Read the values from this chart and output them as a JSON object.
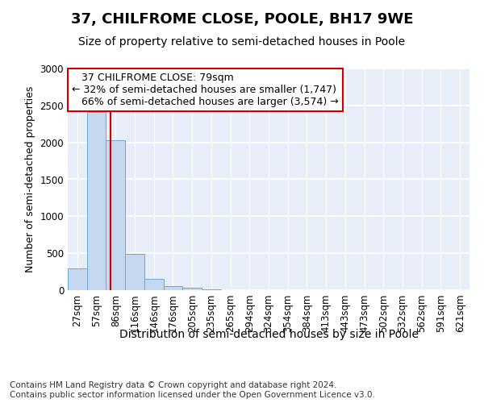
{
  "title": "37, CHILFROME CLOSE, POOLE, BH17 9WE",
  "subtitle": "Size of property relative to semi-detached houses in Poole",
  "xlabel": "Distribution of semi-detached houses by size in Poole",
  "ylabel": "Number of semi-detached properties",
  "categories": [
    "27sqm",
    "57sqm",
    "86sqm",
    "116sqm",
    "146sqm",
    "176sqm",
    "205sqm",
    "235sqm",
    "265sqm",
    "294sqm",
    "324sqm",
    "354sqm",
    "384sqm",
    "413sqm",
    "443sqm",
    "473sqm",
    "502sqm",
    "532sqm",
    "562sqm",
    "591sqm",
    "621sqm"
  ],
  "values": [
    300,
    2410,
    2030,
    490,
    150,
    60,
    30,
    10,
    0,
    0,
    0,
    0,
    0,
    0,
    0,
    0,
    0,
    0,
    0,
    0,
    0
  ],
  "bar_color": "#c5d8f0",
  "bar_edge_color": "#6aaad4",
  "property_label": "37 CHILFROME CLOSE: 79sqm",
  "pct_smaller": 32,
  "count_smaller": 1747,
  "pct_larger": 66,
  "count_larger": 3574,
  "red_line_color": "#cc0000",
  "annotation_box_edge": "#cc0000",
  "ylim": [
    0,
    3000
  ],
  "yticks": [
    0,
    500,
    1000,
    1500,
    2000,
    2500,
    3000
  ],
  "footer_line1": "Contains HM Land Registry data © Crown copyright and database right 2024.",
  "footer_line2": "Contains public sector information licensed under the Open Government Licence v3.0.",
  "title_fontsize": 13,
  "subtitle_fontsize": 10,
  "xlabel_fontsize": 10,
  "ylabel_fontsize": 9,
  "tick_fontsize": 8.5,
  "annot_fontsize": 9,
  "footer_fontsize": 7.5,
  "bg_color": "#e8eef8"
}
